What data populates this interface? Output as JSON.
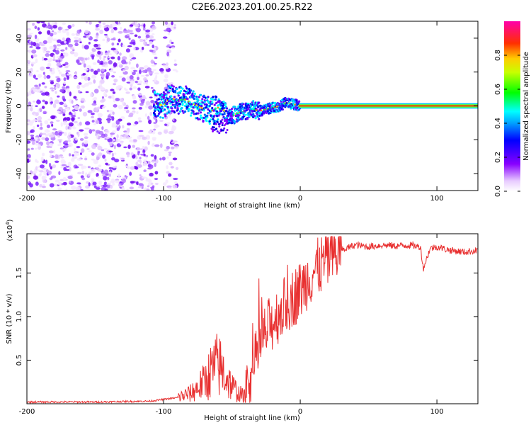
{
  "title": "C2E6.2023.201.00.25.R22",
  "chart_data": [
    {
      "type": "heatmap",
      "xlabel": "Height of straight line (km)",
      "ylabel": "Frequency (Hz)",
      "xlim": [
        -200,
        130
      ],
      "ylim": [
        -50,
        50
      ],
      "xticks": [
        -200,
        -100,
        0,
        100
      ],
      "yticks": [
        -40,
        -20,
        0,
        20,
        40
      ],
      "colorbar": {
        "label": "Normalized spectral amplitude",
        "range": [
          0,
          1
        ],
        "ticks": [
          "0.0",
          "0.2",
          "0.4",
          "0.6",
          "0.8"
        ],
        "colormap": "rainbow (white-violet-blue-cyan-green-yellow-red-magenta)"
      },
      "features": {
        "noise_region_x": [
          -200,
          -90
        ],
        "signal_start_x": -107,
        "signal_center_freq_hz": 0,
        "stable_line_from_x": 0
      }
    },
    {
      "type": "line",
      "xlabel": "Height of straight line (km)",
      "ylabel": "SNR (10 * v/v)",
      "yscale_label": "(x10",
      "yscale_exp": "4",
      "xlim": [
        -200,
        130
      ],
      "ylim": [
        0,
        1.95
      ],
      "xticks": [
        -200,
        -100,
        0,
        100
      ],
      "yticks": [
        "0.5",
        "1.0",
        "1.5"
      ],
      "series": [
        {
          "color": "#e83030",
          "x": [
            -200,
            -150,
            -110,
            -100,
            -90,
            -80,
            -70,
            -65,
            -60,
            -55,
            -50,
            -45,
            -40,
            -35,
            -30,
            -25,
            -20,
            -15,
            -10,
            -5,
            0,
            5,
            10,
            20,
            30,
            40,
            50,
            60,
            70,
            80,
            88,
            90,
            95,
            100,
            110,
            120,
            130
          ],
          "y": [
            0.02,
            0.02,
            0.03,
            0.05,
            0.07,
            0.12,
            0.25,
            0.38,
            0.45,
            0.33,
            0.2,
            0.12,
            0.08,
            0.35,
            0.65,
            0.82,
            0.95,
            1.05,
            1.15,
            1.22,
            1.3,
            1.42,
            1.52,
            1.65,
            1.76,
            1.82,
            1.8,
            1.82,
            1.81,
            1.82,
            1.8,
            1.55,
            1.78,
            1.8,
            1.76,
            1.74,
            1.76
          ]
        }
      ]
    }
  ]
}
